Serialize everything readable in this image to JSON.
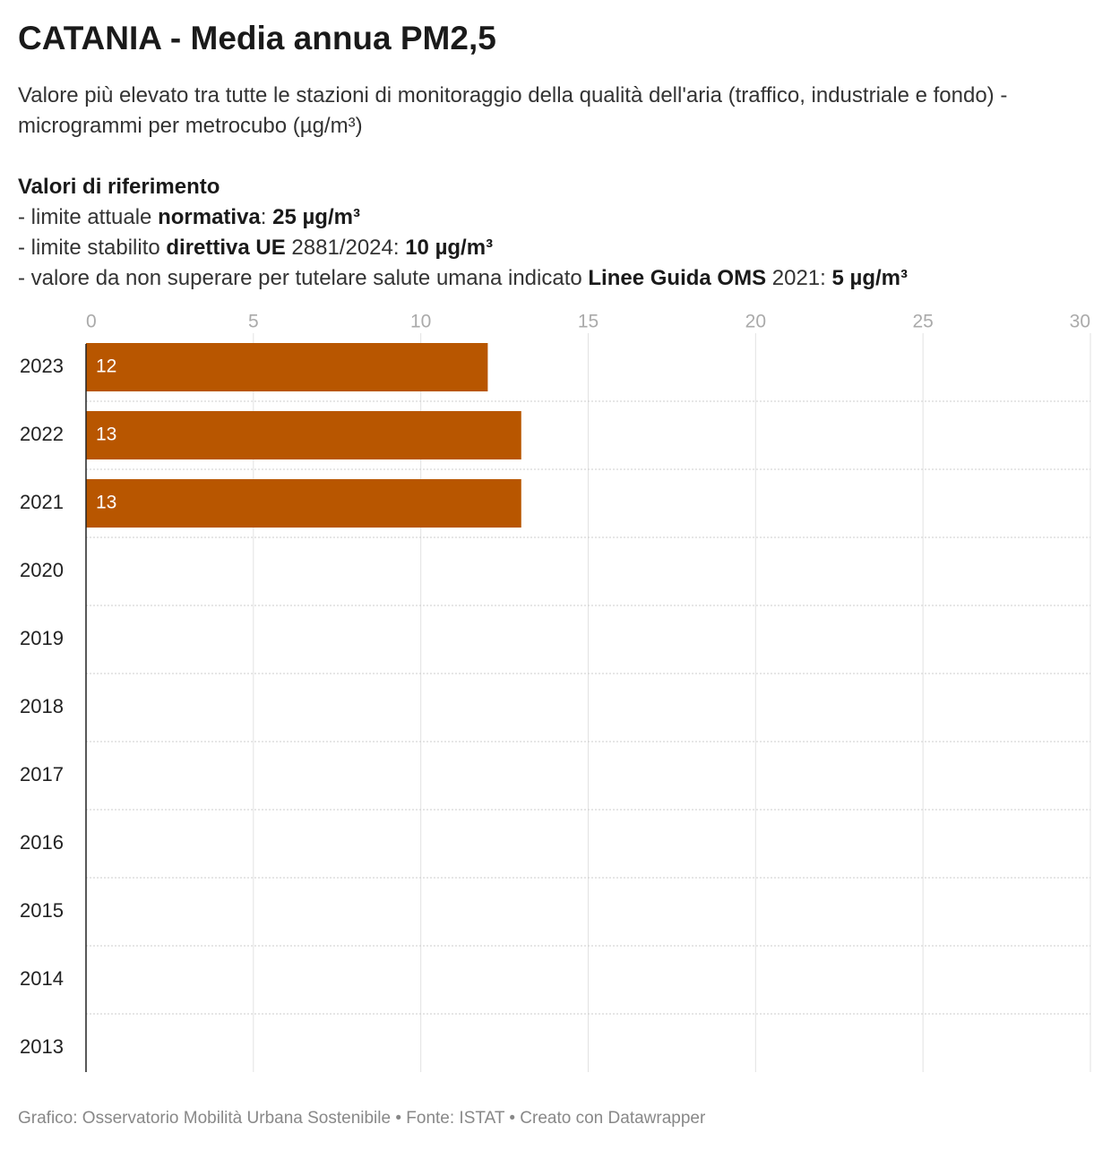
{
  "chart_data": {
    "type": "bar",
    "orientation": "horizontal",
    "title": "CATANIA - Media annua PM2,5",
    "subtitle": "Valore più elevato tra tutte le stazioni di monitoraggio della qualità dell'aria (traffico, industriale e fondo) - microgrammi per metrocubo (µg/m³)",
    "notes": {
      "heading": "Valori di riferimento",
      "lines": [
        [
          {
            "text": "- limite attuale ",
            "bold": false
          },
          {
            "text": "normativa",
            "bold": true
          },
          {
            "text": ": ",
            "bold": false
          },
          {
            "text": "25 µg/m³",
            "bold": true
          }
        ],
        [
          {
            "text": "- limite stabilito ",
            "bold": false
          },
          {
            "text": "direttiva UE",
            "bold": true
          },
          {
            "text": " 2881/2024: ",
            "bold": false
          },
          {
            "text": "10 µg/m³",
            "bold": true
          }
        ],
        [
          {
            "text": "- valore da non superare per tutelare salute umana indicato ",
            "bold": false
          },
          {
            "text": "Linee Guida OMS",
            "bold": true
          },
          {
            "text": " 2021: ",
            "bold": false
          },
          {
            "text": "5 µg/m³",
            "bold": true
          }
        ]
      ]
    },
    "categories": [
      "2023",
      "2022",
      "2021",
      "2020",
      "2019",
      "2018",
      "2017",
      "2016",
      "2015",
      "2014",
      "2013"
    ],
    "values": [
      12,
      13,
      13,
      null,
      null,
      null,
      null,
      null,
      null,
      null,
      null
    ],
    "color": "#b85600",
    "xlim": [
      0,
      30
    ],
    "xticks": [
      0,
      5,
      10,
      15,
      20,
      25,
      30
    ],
    "grid": true,
    "footer": "Grafico: Osservatorio Mobilità Urbana Sostenibile • Fonte: ISTAT • Creato con Datawrapper"
  }
}
